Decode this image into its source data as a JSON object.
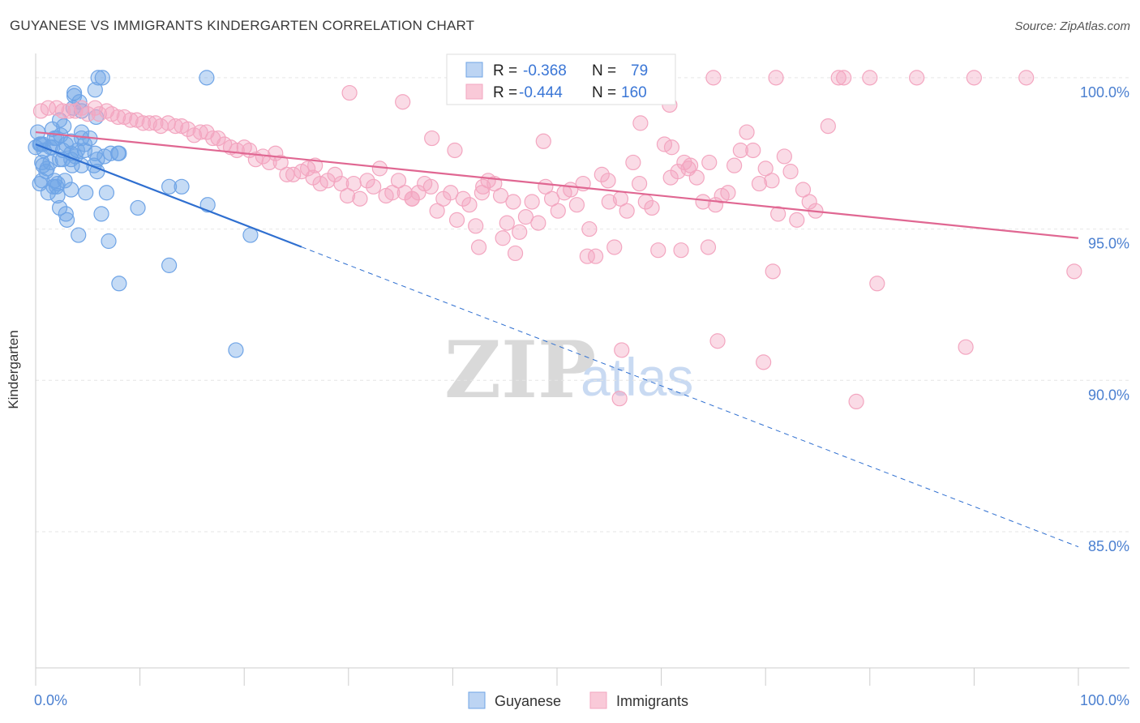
{
  "chart_data": {
    "type": "scatter",
    "title": "GUYANESE VS IMMIGRANTS KINDERGARTEN CORRELATION CHART",
    "source": "Source: ZipAtlas.com",
    "ylabel": "Kindergarten",
    "xlabel": "",
    "xlim": [
      0,
      100
    ],
    "ylim": [
      80.5,
      100.8
    ],
    "y_ticks": [
      {
        "value": 100,
        "label": "100.0%"
      },
      {
        "value": 95,
        "label": "95.0%"
      },
      {
        "value": 90,
        "label": "90.0%"
      },
      {
        "value": 85,
        "label": "85.0%"
      }
    ],
    "x_ticks": [
      {
        "value": 0,
        "label": "0.0%"
      },
      {
        "value": 100,
        "label": "100.0%"
      }
    ],
    "watermark": {
      "zip": "ZIP",
      "atlas": "atlas"
    },
    "legend": [
      {
        "series": "Guyanese",
        "r_label": "R =",
        "r_value": "-0.368",
        "n_label": "N =",
        "n_value": "79"
      },
      {
        "series": "Immigrants",
        "r_label": "R =",
        "r_value": "-0.444",
        "n_label": "N =",
        "n_value": "160"
      }
    ],
    "series": [
      {
        "name": "Guyanese",
        "color": "#6fa4e6",
        "line_color": "#2f6fd0",
        "trend": {
          "x0": 0,
          "y0": 97.8,
          "x_solid_end": 25.5,
          "x1": 100,
          "y1": 84.5
        },
        "points": [
          [
            6.0,
            100.0
          ],
          [
            6.4,
            100.0
          ],
          [
            16.4,
            100.0
          ],
          [
            5.7,
            99.6
          ],
          [
            3.7,
            99.5
          ],
          [
            3.7,
            99.4
          ],
          [
            4.2,
            99.2
          ],
          [
            3.6,
            99.0
          ],
          [
            4.4,
            98.9
          ],
          [
            5.8,
            98.7
          ],
          [
            2.3,
            98.6
          ],
          [
            2.7,
            98.4
          ],
          [
            1.6,
            98.3
          ],
          [
            0.2,
            98.2
          ],
          [
            4.4,
            98.2
          ],
          [
            2.4,
            98.1
          ],
          [
            4.4,
            98.0
          ],
          [
            2.0,
            98.0
          ],
          [
            3.4,
            97.9
          ],
          [
            0.7,
            97.8
          ],
          [
            0.5,
            97.8
          ],
          [
            0.4,
            97.8
          ],
          [
            1.4,
            97.7
          ],
          [
            0.0,
            97.7
          ],
          [
            1.6,
            97.7
          ],
          [
            2.6,
            97.6
          ],
          [
            4.0,
            97.6
          ],
          [
            4.7,
            97.6
          ],
          [
            3.4,
            97.5
          ],
          [
            5.7,
            97.5
          ],
          [
            7.2,
            97.5
          ],
          [
            7.9,
            97.5
          ],
          [
            8.0,
            97.5
          ],
          [
            6.6,
            97.4
          ],
          [
            5.9,
            97.3
          ],
          [
            2.3,
            97.3
          ],
          [
            2.6,
            97.3
          ],
          [
            3.4,
            97.3
          ],
          [
            0.6,
            97.2
          ],
          [
            1.4,
            97.2
          ],
          [
            0.7,
            97.1
          ],
          [
            3.5,
            97.1
          ],
          [
            4.4,
            97.1
          ],
          [
            5.6,
            97.1
          ],
          [
            1.1,
            97.0
          ],
          [
            5.9,
            96.9
          ],
          [
            1.8,
            96.6
          ],
          [
            0.6,
            96.6
          ],
          [
            2.1,
            96.5
          ],
          [
            0.4,
            96.5
          ],
          [
            1.7,
            96.4
          ],
          [
            12.8,
            96.4
          ],
          [
            14.0,
            96.4
          ],
          [
            2.0,
            96.4
          ],
          [
            3.4,
            96.3
          ],
          [
            6.8,
            96.2
          ],
          [
            4.8,
            96.2
          ],
          [
            1.2,
            96.2
          ],
          [
            2.1,
            96.1
          ],
          [
            16.5,
            95.8
          ],
          [
            2.3,
            95.7
          ],
          [
            9.8,
            95.7
          ],
          [
            6.3,
            95.5
          ],
          [
            2.9,
            95.5
          ],
          [
            3.0,
            95.3
          ],
          [
            20.6,
            94.8
          ],
          [
            4.1,
            94.8
          ],
          [
            7.0,
            94.6
          ],
          [
            12.8,
            93.8
          ],
          [
            8.0,
            93.2
          ],
          [
            19.2,
            91.0
          ],
          [
            3.8,
            97.4
          ],
          [
            4.7,
            97.8
          ],
          [
            0.8,
            97.6
          ],
          [
            1.8,
            98.0
          ],
          [
            2.9,
            97.8
          ],
          [
            5.2,
            98.0
          ],
          [
            1.0,
            96.9
          ],
          [
            2.8,
            96.6
          ]
        ]
      },
      {
        "name": "Immigrants",
        "color": "#f3a6c0",
        "line_color": "#e06792",
        "trend": {
          "x0": 0,
          "y0": 98.2,
          "x1": 100,
          "y1": 94.7
        },
        "points": [
          [
            65.0,
            100.0
          ],
          [
            71.0,
            100.0
          ],
          [
            77.0,
            100.0
          ],
          [
            80.0,
            100.0
          ],
          [
            84.5,
            100.0
          ],
          [
            90.0,
            100.0
          ],
          [
            95.0,
            100.0
          ],
          [
            77.5,
            100.0
          ],
          [
            0.5,
            98.9
          ],
          [
            1.2,
            99.0
          ],
          [
            2.0,
            99.0
          ],
          [
            2.6,
            98.9
          ],
          [
            3.2,
            98.9
          ],
          [
            3.8,
            98.9
          ],
          [
            4.4,
            99.0
          ],
          [
            5.0,
            98.8
          ],
          [
            5.7,
            99.0
          ],
          [
            6.1,
            98.8
          ],
          [
            6.8,
            98.9
          ],
          [
            7.3,
            98.8
          ],
          [
            7.9,
            98.7
          ],
          [
            8.5,
            98.7
          ],
          [
            9.1,
            98.6
          ],
          [
            9.7,
            98.6
          ],
          [
            10.3,
            98.5
          ],
          [
            10.9,
            98.5
          ],
          [
            11.5,
            98.5
          ],
          [
            12.0,
            98.4
          ],
          [
            12.7,
            98.5
          ],
          [
            13.4,
            98.4
          ],
          [
            14.0,
            98.4
          ],
          [
            14.6,
            98.3
          ],
          [
            15.2,
            98.1
          ],
          [
            15.8,
            98.2
          ],
          [
            16.4,
            98.2
          ],
          [
            17.0,
            98.0
          ],
          [
            17.5,
            98.0
          ],
          [
            18.1,
            97.8
          ],
          [
            18.7,
            97.7
          ],
          [
            19.3,
            97.6
          ],
          [
            20.0,
            97.7
          ],
          [
            20.5,
            97.6
          ],
          [
            21.1,
            97.3
          ],
          [
            21.8,
            97.4
          ],
          [
            22.4,
            97.2
          ],
          [
            23.0,
            97.5
          ],
          [
            23.5,
            97.2
          ],
          [
            24.1,
            96.8
          ],
          [
            24.7,
            96.8
          ],
          [
            25.5,
            96.9
          ],
          [
            26.1,
            97.0
          ],
          [
            26.6,
            96.7
          ],
          [
            27.3,
            96.5
          ],
          [
            28.0,
            96.6
          ],
          [
            28.7,
            96.8
          ],
          [
            29.3,
            96.5
          ],
          [
            29.9,
            96.1
          ],
          [
            30.5,
            96.5
          ],
          [
            31.1,
            96.0
          ],
          [
            31.8,
            96.6
          ],
          [
            32.4,
            96.4
          ],
          [
            33.0,
            97.0
          ],
          [
            33.6,
            96.1
          ],
          [
            34.2,
            96.2
          ],
          [
            34.8,
            96.6
          ],
          [
            35.4,
            96.2
          ],
          [
            36.1,
            96.0
          ],
          [
            36.7,
            96.2
          ],
          [
            37.3,
            96.5
          ],
          [
            37.9,
            96.4
          ],
          [
            38.5,
            95.6
          ],
          [
            39.1,
            96.0
          ],
          [
            39.8,
            96.2
          ],
          [
            40.4,
            95.3
          ],
          [
            41.0,
            96.0
          ],
          [
            41.6,
            95.8
          ],
          [
            42.2,
            95.1
          ],
          [
            42.8,
            96.2
          ],
          [
            43.4,
            96.6
          ],
          [
            44.0,
            96.5
          ],
          [
            44.6,
            96.1
          ],
          [
            45.2,
            95.2
          ],
          [
            45.8,
            95.9
          ],
          [
            46.4,
            94.9
          ],
          [
            47.0,
            95.4
          ],
          [
            47.6,
            95.9
          ],
          [
            48.2,
            95.2
          ],
          [
            48.9,
            96.4
          ],
          [
            49.5,
            96.0
          ],
          [
            50.1,
            95.6
          ],
          [
            50.7,
            96.2
          ],
          [
            51.3,
            96.3
          ],
          [
            51.9,
            95.8
          ],
          [
            52.5,
            96.5
          ],
          [
            53.1,
            95.0
          ],
          [
            53.7,
            94.1
          ],
          [
            54.3,
            96.8
          ],
          [
            54.9,
            96.6
          ],
          [
            55.5,
            94.4
          ],
          [
            56.1,
            96.0
          ],
          [
            56.7,
            95.6
          ],
          [
            57.3,
            97.2
          ],
          [
            57.9,
            96.5
          ],
          [
            58.5,
            95.9
          ],
          [
            59.1,
            95.7
          ],
          [
            59.7,
            94.3
          ],
          [
            60.3,
            97.8
          ],
          [
            61.0,
            97.7
          ],
          [
            61.6,
            96.9
          ],
          [
            62.2,
            97.2
          ],
          [
            62.8,
            97.1
          ],
          [
            63.4,
            96.7
          ],
          [
            64.0,
            95.9
          ],
          [
            64.6,
            97.2
          ],
          [
            65.2,
            95.8
          ],
          [
            65.8,
            96.1
          ],
          [
            66.4,
            96.2
          ],
          [
            67.0,
            97.1
          ],
          [
            67.6,
            97.6
          ],
          [
            68.2,
            98.2
          ],
          [
            68.8,
            97.6
          ],
          [
            69.4,
            96.5
          ],
          [
            70.0,
            97.0
          ],
          [
            70.6,
            96.6
          ],
          [
            71.2,
            95.5
          ],
          [
            71.8,
            97.4
          ],
          [
            72.4,
            96.9
          ],
          [
            73.0,
            95.3
          ],
          [
            73.6,
            96.3
          ],
          [
            74.2,
            95.9
          ],
          [
            74.8,
            95.6
          ],
          [
            76.0,
            98.4
          ],
          [
            64.5,
            94.4
          ],
          [
            61.9,
            94.3
          ],
          [
            52.9,
            94.1
          ],
          [
            46.0,
            94.2
          ],
          [
            42.5,
            94.4
          ],
          [
            44.8,
            94.7
          ],
          [
            70.7,
            93.6
          ],
          [
            80.7,
            93.2
          ],
          [
            99.6,
            93.6
          ],
          [
            65.4,
            91.3
          ],
          [
            56.2,
            91.0
          ],
          [
            69.8,
            90.6
          ],
          [
            89.2,
            91.1
          ],
          [
            56.0,
            89.4
          ],
          [
            78.7,
            89.3
          ],
          [
            60.9,
            96.7
          ],
          [
            58.0,
            98.5
          ],
          [
            62.6,
            97.0
          ],
          [
            55.0,
            95.9
          ],
          [
            38.0,
            98.0
          ],
          [
            60.8,
            99.1
          ],
          [
            40.2,
            97.6
          ],
          [
            30.1,
            99.5
          ],
          [
            35.2,
            99.2
          ],
          [
            26.8,
            97.1
          ],
          [
            48.7,
            97.9
          ],
          [
            42.9,
            96.4
          ],
          [
            36.1,
            96.0
          ]
        ]
      }
    ]
  }
}
